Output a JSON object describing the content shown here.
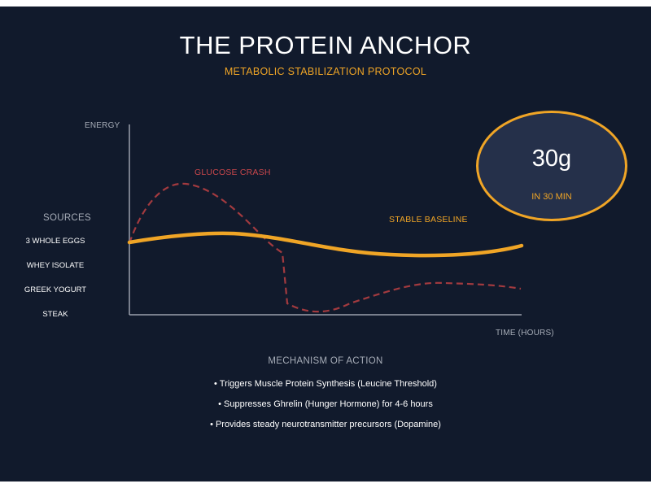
{
  "title": "THE PROTEIN ANCHOR",
  "subtitle": "METABOLIC STABILIZATION PROTOCOL",
  "chart": {
    "y_axis_label": "ENERGY",
    "x_axis_label": "TIME (HOURS)",
    "glucose_label": "GLUCOSE CRASH",
    "baseline_label": "STABLE BASELINE",
    "colors": {
      "glucose": "#a23a3f",
      "baseline": "#f0a526",
      "axis": "#9aa0ab"
    }
  },
  "sources": {
    "heading": "SOURCES",
    "items": [
      "3 WHOLE EGGS",
      "WHEY ISOLATE",
      "GREEK YOGURT",
      "STEAK"
    ]
  },
  "badge": {
    "value": "30g",
    "caption": "IN 30 MIN"
  },
  "mechanism": {
    "heading": "MECHANISM OF ACTION",
    "bullets": [
      "• Triggers Muscle Protein Synthesis (Leucine Threshold)",
      "• Suppresses Ghrelin (Hunger Hormone) for 4-6 hours",
      "• Provides steady neurotransmitter precursors (Dopamine)"
    ]
  }
}
